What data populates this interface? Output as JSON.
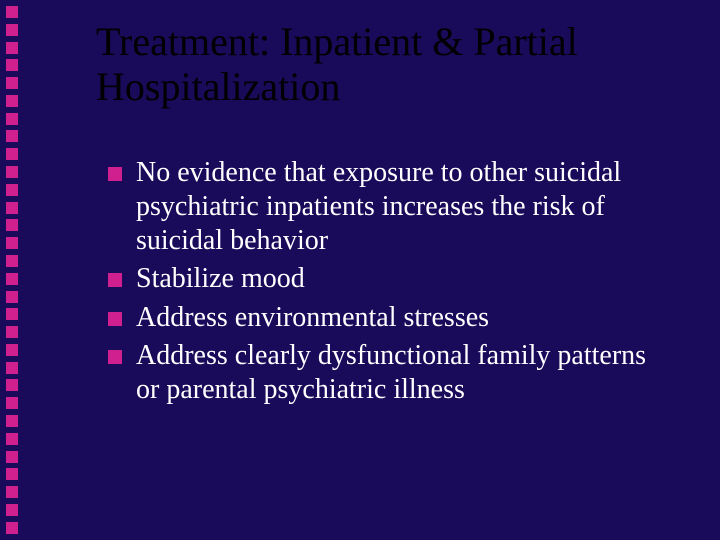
{
  "slide": {
    "background_color": "#1a0a5a",
    "title": "Treatment: Inpatient & Partial Hospitalization",
    "title_color": "#000000",
    "title_fontsize": 40,
    "body_color": "#ffffff",
    "body_fontsize": 28,
    "bullet_marker_color": "#d02090",
    "bullet_marker_size": 14,
    "bullets": [
      "No evidence that exposure to other suicidal psychiatric inpatients increases the risk of suicidal behavior",
      "Stabilize mood",
      "Address environmental stresses",
      "Address clearly dysfunctional family patterns or parental psychiatric illness"
    ],
    "side_decoration": {
      "square_color": "#d02090",
      "square_size": 12,
      "count": 30
    }
  }
}
